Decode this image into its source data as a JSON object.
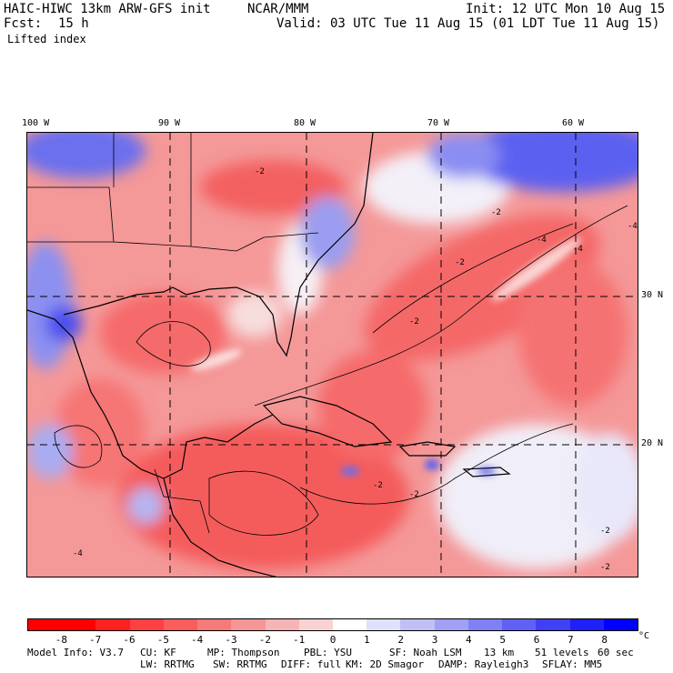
{
  "header": {
    "model": "HAIC-HIWC 13km ARW-GFS init",
    "org": "NCAR/MMM",
    "fcst": "Fcst:",
    "fcst_hours": "15 h",
    "init": "Init: 12 UTC Mon 10 Aug 15",
    "valid": "Valid: 03 UTC Tue 11 Aug 15 (01 LDT Tue 11 Aug 15)",
    "field": "Lifted index"
  },
  "map": {
    "lon_labels": [
      "100 W",
      "90 W",
      "80 W",
      "70 W",
      "60 W"
    ],
    "lat_labels": [
      "30 N",
      "20 N"
    ],
    "contour_labels": [
      "-2",
      "-4",
      "-2",
      "-4",
      "-2",
      "-4",
      "-2",
      "-2",
      "-2",
      "-2",
      "-4",
      "-2"
    ]
  },
  "colorbar": {
    "labels": [
      "-8",
      "-7",
      "-6",
      "-5",
      "-4",
      "-3",
      "-2",
      "-1",
      "0",
      "1",
      "2",
      "3",
      "4",
      "5",
      "6",
      "7",
      "8"
    ],
    "unit": "°C",
    "colors": [
      "#ff0000",
      "#ff2020",
      "#ff4040",
      "#fb5c5c",
      "#f77a7a",
      "#f59696",
      "#f7b4b4",
      "#fbd2d2",
      "#ffffff",
      "#dfe0fb",
      "#c0c0f7",
      "#a0a0f5",
      "#8080f5",
      "#6060f5",
      "#4040f7",
      "#2020fb",
      "#0000ff"
    ]
  },
  "info": {
    "line1": [
      "Model Info: V3.7",
      "CU: KF",
      "MP: Thompson",
      "PBL: YSU",
      "SF: Noah LSM",
      "13 km",
      "51 levels",
      "60 sec"
    ],
    "line2": [
      "LW: RRTMG",
      "SW: RRTMG",
      "DIFF: full",
      "KM: 2D Smagor",
      "DAMP: Rayleigh3",
      "SFLAY: MM5"
    ]
  }
}
